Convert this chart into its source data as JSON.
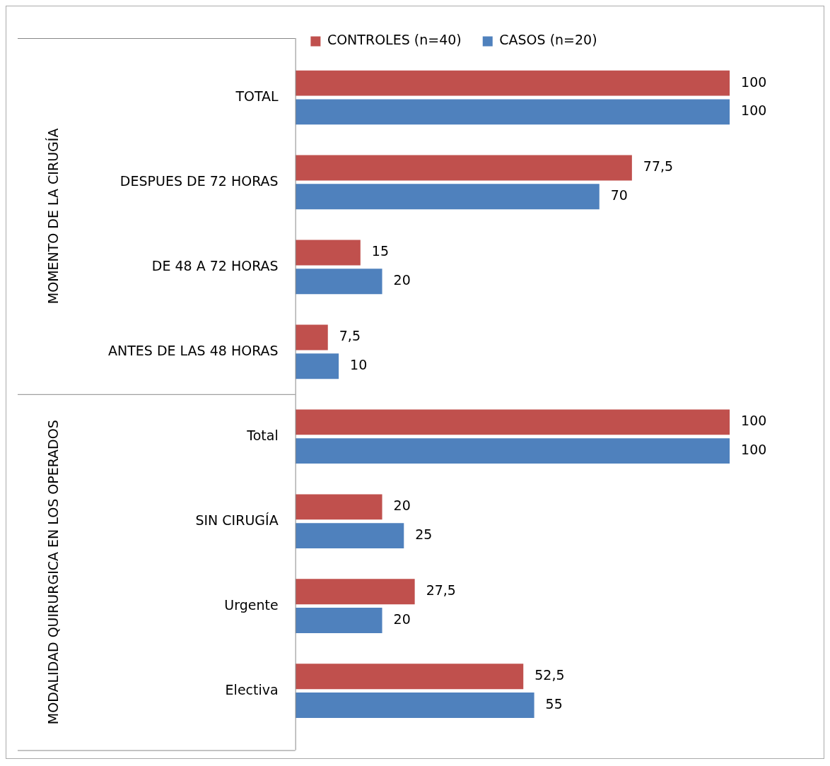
{
  "chart_data": {
    "type": "bar",
    "orientation": "horizontal",
    "legend": "top",
    "grid": false,
    "tick_labels": "y",
    "categories": [
      "TOTAL",
      "DESPUES DE 72 HORAS",
      "DE 48 A 72 HORAS",
      "ANTES DE LAS 48 HORAS",
      "Total",
      "SIN CIRUGÍA",
      "Urgente",
      "Electiva"
    ],
    "annotations": [
      "MOMENTO DE LA CIRUGÍA",
      "MODALIDAD QUIRURGICA EN LOS OPERADOS"
    ],
    "series": [
      {
        "name": "CONTROLES (n=40)",
        "color": "#c0504d",
        "values": [
          100,
          77.5,
          15,
          7.5,
          100,
          20,
          27.5,
          52.5
        ],
        "value_labels": [
          "100",
          "77,5",
          "15",
          "7,5",
          "100",
          "20",
          "27,5",
          "52,5"
        ]
      },
      {
        "name": "CASOS (n=20)",
        "color": "#4f81bd",
        "values": [
          100,
          70,
          20,
          10,
          100,
          25,
          20,
          55
        ],
        "value_labels": [
          "100",
          "70",
          "20",
          "10",
          "100",
          "25",
          "20",
          "55"
        ]
      }
    ]
  }
}
